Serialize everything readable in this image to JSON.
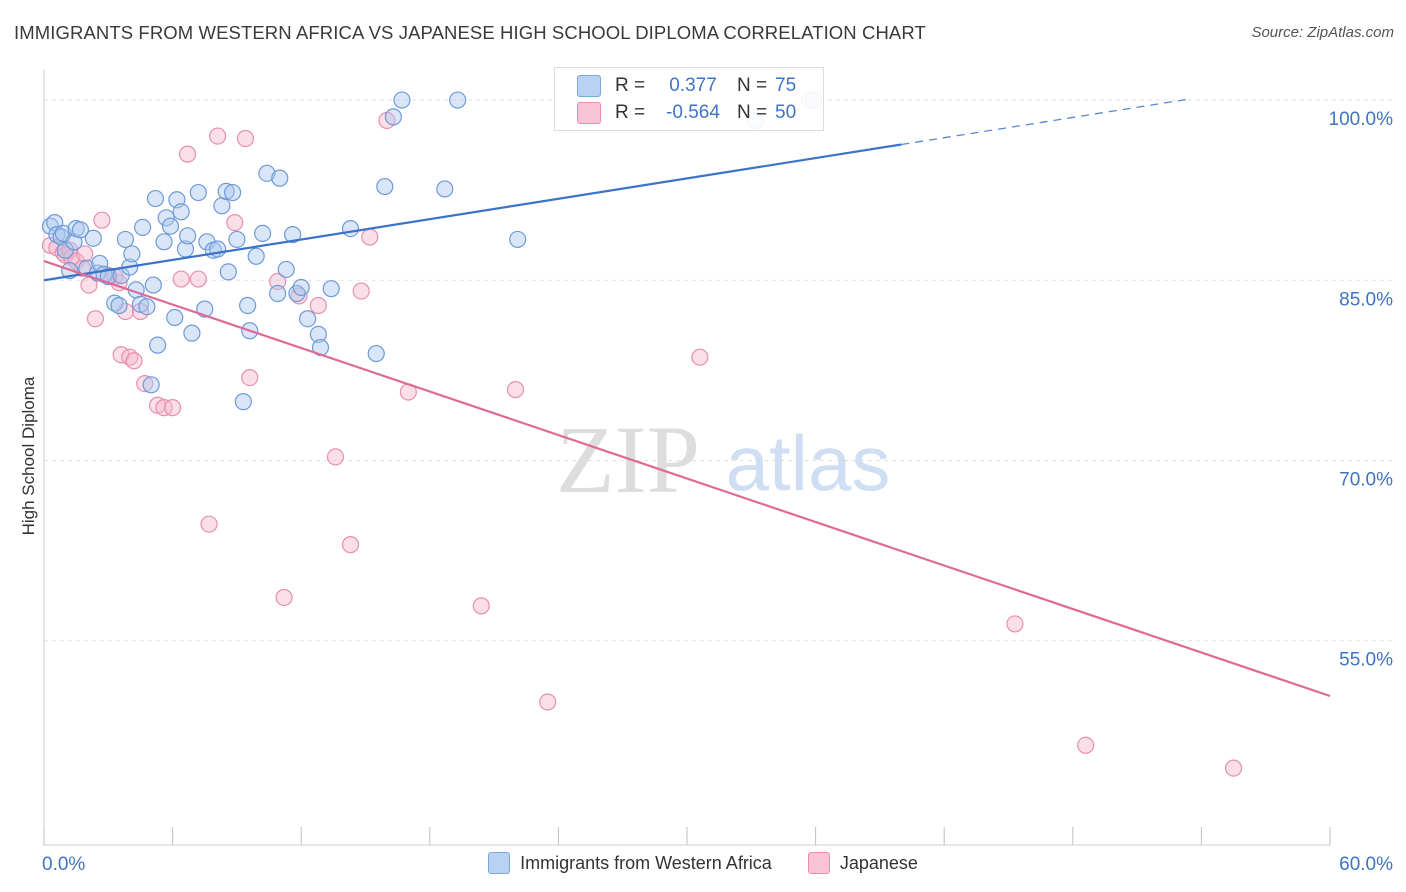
{
  "title": "IMMIGRANTS FROM WESTERN AFRICA VS JAPANESE HIGH SCHOOL DIPLOMA CORRELATION CHART",
  "source": "Source: ZipAtlas.com",
  "watermark": {
    "zip": "ZIP",
    "atlas": "atlas"
  },
  "colors": {
    "blue": "#3b73c8",
    "blue_fill": "#aac8ee",
    "pink": "#e06a97",
    "pink_fill": "#f4b6cb",
    "tick_label": "#3f74c4",
    "grid": "#e2e2e2"
  },
  "legend": {
    "rows": [
      {
        "r_label": "R =",
        "r_value": "0.377",
        "n_label": "N =",
        "n_value": "75"
      },
      {
        "r_label": "R =",
        "r_value": "-0.564",
        "n_label": "N =",
        "n_value": "50"
      }
    ]
  },
  "bottom_legend": [
    "Immigrants from Western Africa",
    "Japanese"
  ],
  "chart_data": {
    "type": "scatter",
    "title": "IMMIGRANTS FROM WESTERN AFRICA VS JAPANESE HIGH SCHOOL DIPLOMA CORRELATION CHART",
    "xlabel": "",
    "ylabel": "High School Diploma",
    "xlim": [
      0,
      60
    ],
    "ylim": [
      38,
      102.5
    ],
    "x_tick_labels": [
      "0.0%",
      "60.0%"
    ],
    "y_ticks": [
      55,
      70,
      85,
      100
    ],
    "y_tick_labels": [
      "55.0%",
      "70.0%",
      "85.0%",
      "100.0%"
    ],
    "grid": true,
    "series": [
      {
        "name": "Immigrants from Western Africa",
        "color": "blue",
        "R": 0.377,
        "N": 75,
        "trend": {
          "x0": 0,
          "y0": 85.0,
          "x1": 40.0,
          "y1": 96.3,
          "dash_to_x": 53.5,
          "dash_to_y": 100.1
        },
        "points": [
          [
            0.3,
            89.5
          ],
          [
            0.5,
            89.8
          ],
          [
            0.6,
            88.8
          ],
          [
            0.8,
            88.6
          ],
          [
            0.9,
            88.9
          ],
          [
            1.0,
            87.5
          ],
          [
            1.2,
            85.8
          ],
          [
            1.4,
            88.2
          ],
          [
            1.5,
            89.3
          ],
          [
            1.7,
            89.2
          ],
          [
            2.0,
            86.0
          ],
          [
            2.3,
            88.5
          ],
          [
            2.5,
            85.6
          ],
          [
            2.6,
            86.4
          ],
          [
            2.8,
            85.5
          ],
          [
            3.0,
            85.3
          ],
          [
            3.3,
            83.1
          ],
          [
            3.5,
            82.9
          ],
          [
            3.6,
            85.4
          ],
          [
            3.8,
            88.4
          ],
          [
            4.0,
            86.1
          ],
          [
            4.1,
            87.2
          ],
          [
            4.3,
            84.2
          ],
          [
            4.5,
            83.0
          ],
          [
            4.6,
            89.4
          ],
          [
            4.8,
            82.8
          ],
          [
            5.0,
            76.3
          ],
          [
            5.1,
            84.6
          ],
          [
            5.2,
            91.8
          ],
          [
            5.3,
            79.6
          ],
          [
            5.6,
            88.2
          ],
          [
            5.7,
            90.2
          ],
          [
            5.9,
            89.5
          ],
          [
            6.1,
            81.9
          ],
          [
            6.2,
            91.7
          ],
          [
            6.4,
            90.7
          ],
          [
            6.6,
            87.6
          ],
          [
            6.7,
            88.7
          ],
          [
            6.9,
            80.6
          ],
          [
            7.2,
            92.3
          ],
          [
            7.5,
            82.6
          ],
          [
            7.6,
            88.2
          ],
          [
            7.9,
            87.5
          ],
          [
            8.1,
            87.6
          ],
          [
            8.3,
            91.2
          ],
          [
            8.5,
            92.4
          ],
          [
            8.6,
            85.7
          ],
          [
            8.8,
            92.3
          ],
          [
            9.0,
            88.4
          ],
          [
            9.3,
            74.9
          ],
          [
            9.5,
            82.9
          ],
          [
            9.6,
            80.8
          ],
          [
            9.9,
            87.0
          ],
          [
            10.2,
            88.9
          ],
          [
            10.4,
            93.9
          ],
          [
            10.9,
            83.9
          ],
          [
            11.0,
            93.5
          ],
          [
            11.3,
            85.9
          ],
          [
            11.6,
            88.8
          ],
          [
            11.8,
            83.9
          ],
          [
            12.0,
            84.4
          ],
          [
            12.3,
            81.8
          ],
          [
            12.8,
            80.5
          ],
          [
            12.9,
            79.4
          ],
          [
            13.4,
            84.3
          ],
          [
            14.3,
            89.3
          ],
          [
            15.5,
            78.9
          ],
          [
            15.9,
            92.8
          ],
          [
            16.3,
            98.6
          ],
          [
            16.7,
            100.0
          ],
          [
            18.7,
            92.6
          ],
          [
            19.3,
            100.0
          ],
          [
            22.1,
            88.4
          ],
          [
            33.2,
            98.3
          ],
          [
            35.9,
            100.0
          ]
        ]
      },
      {
        "name": "Japanese",
        "color": "pink",
        "R": -0.564,
        "N": 50,
        "trend": {
          "x0": 0,
          "y0": 86.6,
          "x1": 60,
          "y1": 50.4
        },
        "points": [
          [
            0.3,
            87.9
          ],
          [
            0.6,
            87.7
          ],
          [
            0.9,
            87.3
          ],
          [
            1.0,
            87.1
          ],
          [
            1.2,
            87.5
          ],
          [
            1.3,
            86.9
          ],
          [
            1.5,
            86.6
          ],
          [
            1.8,
            86.0
          ],
          [
            1.9,
            87.2
          ],
          [
            2.1,
            84.6
          ],
          [
            2.4,
            81.8
          ],
          [
            2.7,
            90.0
          ],
          [
            3.0,
            85.4
          ],
          [
            3.3,
            85.3
          ],
          [
            3.5,
            84.8
          ],
          [
            3.6,
            78.8
          ],
          [
            3.8,
            82.4
          ],
          [
            4.0,
            78.6
          ],
          [
            4.2,
            78.3
          ],
          [
            4.5,
            82.4
          ],
          [
            4.7,
            76.4
          ],
          [
            5.3,
            74.6
          ],
          [
            5.6,
            74.4
          ],
          [
            6.0,
            74.4
          ],
          [
            6.4,
            85.1
          ],
          [
            6.7,
            95.5
          ],
          [
            7.2,
            85.1
          ],
          [
            7.7,
            64.7
          ],
          [
            8.1,
            97.0
          ],
          [
            8.9,
            89.8
          ],
          [
            9.4,
            96.8
          ],
          [
            9.6,
            76.9
          ],
          [
            10.9,
            84.9
          ],
          [
            11.2,
            58.6
          ],
          [
            11.9,
            83.7
          ],
          [
            12.8,
            82.9
          ],
          [
            13.6,
            70.3
          ],
          [
            14.3,
            63.0
          ],
          [
            14.8,
            84.1
          ],
          [
            15.2,
            88.6
          ],
          [
            16.0,
            98.3
          ],
          [
            17.0,
            75.7
          ],
          [
            20.4,
            57.9
          ],
          [
            22.0,
            75.9
          ],
          [
            23.5,
            49.9
          ],
          [
            30.6,
            78.6
          ],
          [
            35.7,
            100.0
          ],
          [
            45.3,
            56.4
          ],
          [
            48.6,
            46.3
          ],
          [
            55.5,
            44.4
          ]
        ]
      }
    ]
  }
}
